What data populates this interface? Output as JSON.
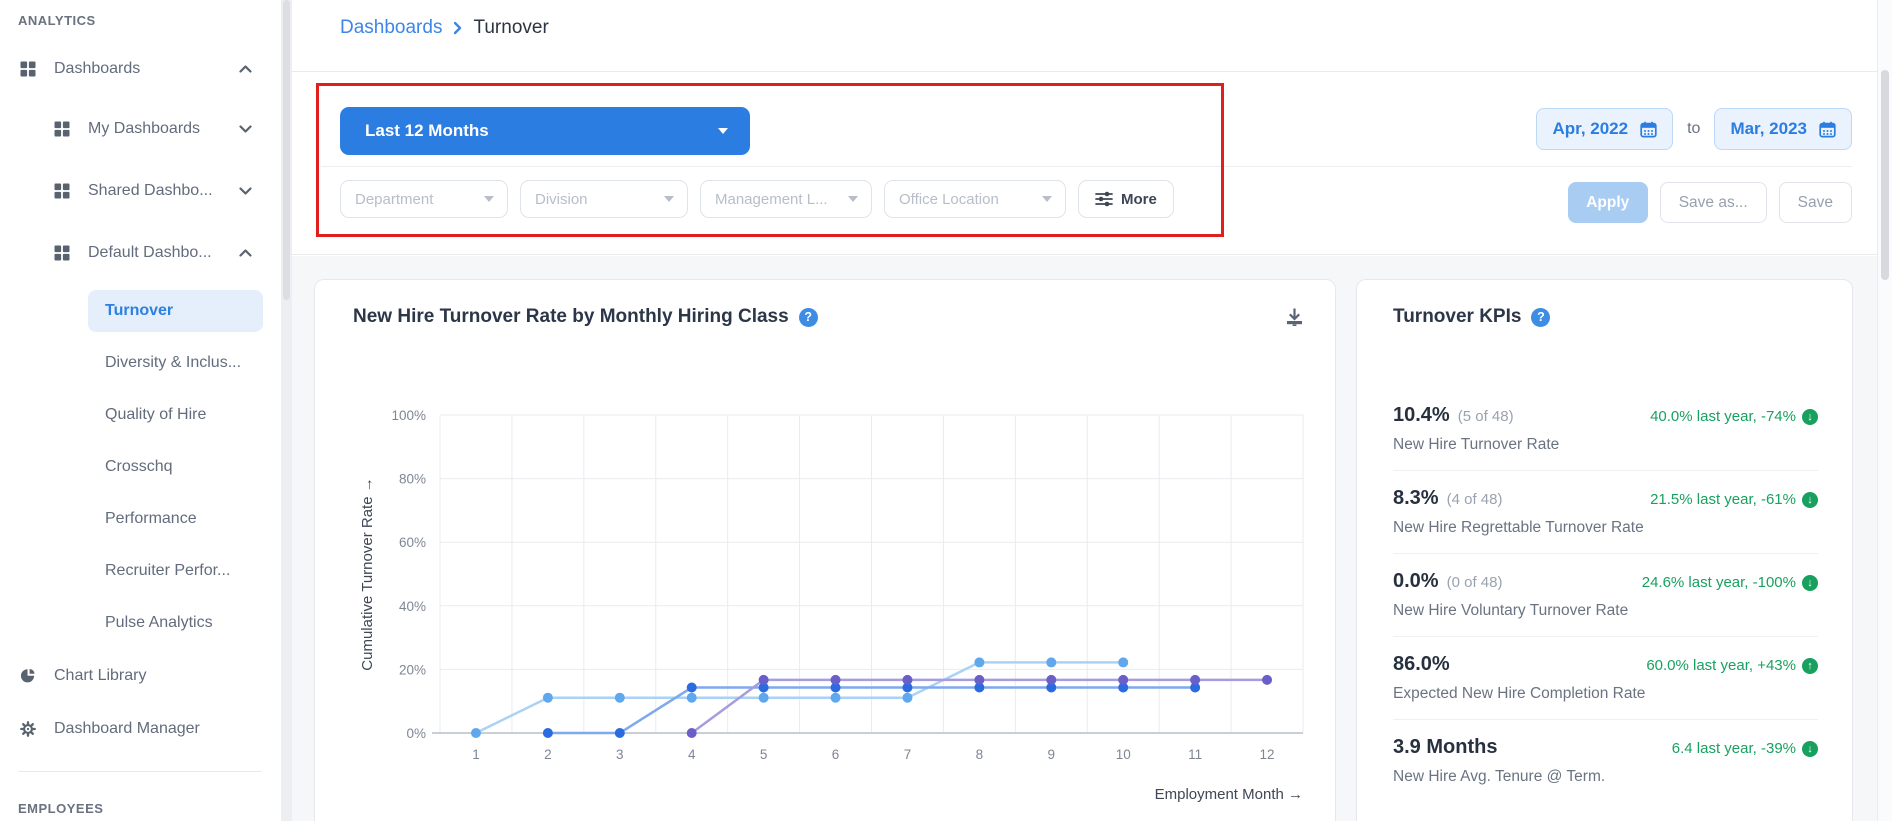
{
  "sidebar": {
    "section_analytics": "ANALYTICS",
    "section_employees": "EMPLOYEES",
    "items": [
      {
        "label": "Dashboards"
      },
      {
        "label": "My Dashboards"
      },
      {
        "label": "Shared Dashbo..."
      },
      {
        "label": "Default Dashbo..."
      },
      {
        "label": "Turnover"
      },
      {
        "label": "Diversity & Inclus..."
      },
      {
        "label": "Quality of Hire"
      },
      {
        "label": "Crosschq"
      },
      {
        "label": "Performance"
      },
      {
        "label": "Recruiter Perfor..."
      },
      {
        "label": "Pulse Analytics"
      },
      {
        "label": "Chart Library"
      },
      {
        "label": "Dashboard Manager"
      }
    ]
  },
  "breadcrumb": {
    "parent": "Dashboards",
    "current": "Turnover"
  },
  "filters": {
    "time_range": "Last 12 Months",
    "dropdowns": [
      "Department",
      "Division",
      "Management L...",
      "Office Location"
    ],
    "more_label": "More",
    "date_from": "Apr, 2022",
    "date_to_word": "to",
    "date_to": "Mar, 2023",
    "apply_label": "Apply",
    "save_as_label": "Save as...",
    "save_label": "Save"
  },
  "misc": {
    "help_glyph": "?"
  },
  "chart_card": {
    "title": "New Hire Turnover Rate by Monthly Hiring Class"
  },
  "chart_data": {
    "type": "line",
    "title": "New Hire Turnover Rate by Monthly Hiring Class",
    "xlabel": "Employment Month →",
    "ylabel": "Cumulative Turnover Rate →",
    "x_ticks": [
      1,
      2,
      3,
      4,
      5,
      6,
      7,
      8,
      9,
      10,
      11,
      12
    ],
    "y_ticks": [
      "0%",
      "20%",
      "40%",
      "60%",
      "80%",
      "100%"
    ],
    "ylim": [
      0,
      100
    ],
    "grid": true,
    "legend": "none",
    "grid_color": "#e9ebf0",
    "axis_color": "#c9ced7",
    "series": [
      {
        "name": "hiring-class-light-blue",
        "line_color": "#a9d2f6",
        "dot_color": "#5fa8ee",
        "points": [
          [
            1,
            0
          ],
          [
            2,
            11.1
          ],
          [
            3,
            11.1
          ],
          [
            4,
            11.1
          ],
          [
            5,
            11.1
          ],
          [
            6,
            11.1
          ],
          [
            7,
            11.1
          ],
          [
            8,
            22.2
          ],
          [
            9,
            22.2
          ],
          [
            10,
            22.2
          ]
        ]
      },
      {
        "name": "hiring-class-royal-blue",
        "line_color": "#7fa9ef",
        "dot_color": "#2a6ce0",
        "points": [
          [
            2,
            0
          ],
          [
            3,
            0
          ],
          [
            4,
            14.3
          ],
          [
            5,
            14.3
          ],
          [
            6,
            14.3
          ],
          [
            7,
            14.3
          ],
          [
            8,
            14.3
          ],
          [
            9,
            14.3
          ],
          [
            10,
            14.3
          ],
          [
            11,
            14.3
          ]
        ]
      },
      {
        "name": "hiring-class-purple",
        "line_color": "#a79cdd",
        "dot_color": "#6a5ec8",
        "points": [
          [
            4,
            0
          ],
          [
            5,
            16.7
          ],
          [
            6,
            16.7
          ],
          [
            7,
            16.7
          ],
          [
            8,
            16.7
          ],
          [
            9,
            16.7
          ],
          [
            10,
            16.7
          ],
          [
            11,
            16.7
          ],
          [
            12,
            16.7
          ]
        ]
      }
    ]
  },
  "kpi_panel": {
    "title": "Turnover KPIs",
    "kpis": [
      {
        "value": "10.4%",
        "sub": "(5 of 48)",
        "trend": "40.0% last year, -74%",
        "arrow": "↓",
        "label": "New Hire Turnover Rate"
      },
      {
        "value": "8.3%",
        "sub": "(4 of 48)",
        "trend": "21.5% last year, -61%",
        "arrow": "↓",
        "label": "New Hire Regrettable Turnover Rate"
      },
      {
        "value": "0.0%",
        "sub": "(0 of 48)",
        "trend": "24.6% last year, -100%",
        "arrow": "↓",
        "label": "New Hire Voluntary Turnover Rate"
      },
      {
        "value": "86.0%",
        "sub": "",
        "trend": "60.0% last year, +43%",
        "arrow": "↑",
        "label": "Expected New Hire Completion Rate"
      },
      {
        "value": "3.9 Months",
        "sub": "",
        "trend": "6.4 last year, -39%",
        "arrow": "↓",
        "label": "New Hire Avg. Tenure @ Term."
      }
    ]
  }
}
